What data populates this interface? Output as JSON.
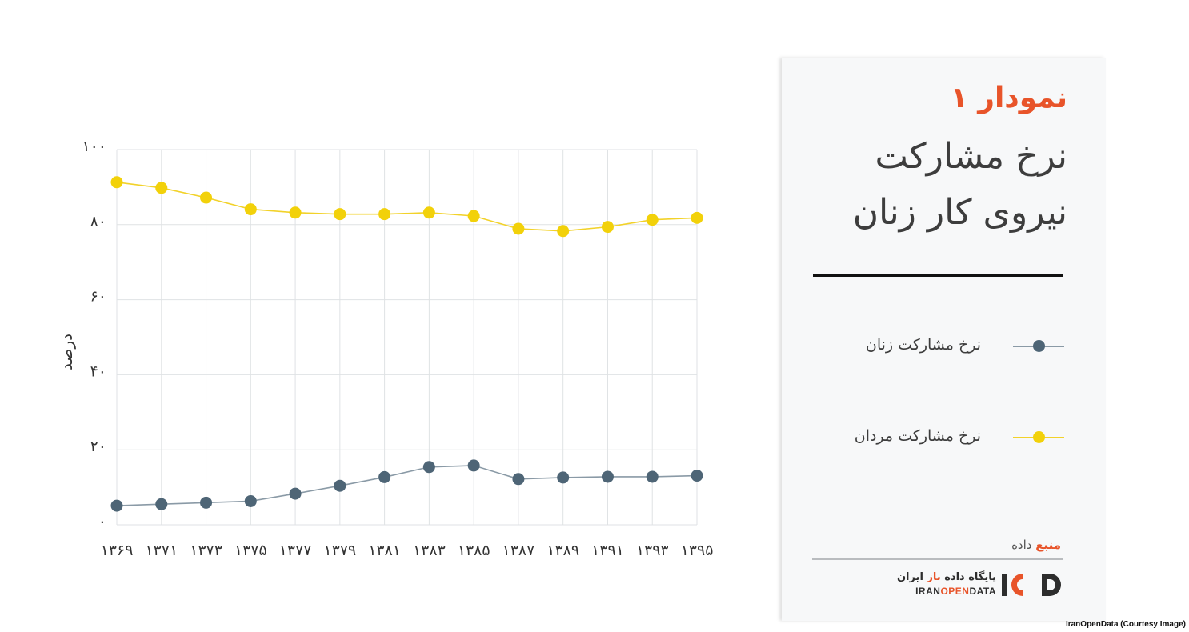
{
  "chart_data": {
    "type": "line",
    "ylabel": "درصد",
    "ylim": [
      0,
      100
    ],
    "yticks": [
      "۰",
      "۲۰",
      "۴۰",
      "۶۰",
      "۸۰",
      "۱۰۰"
    ],
    "ytick_values": [
      0,
      20,
      40,
      60,
      80,
      100
    ],
    "x": [
      1369,
      1371,
      1373,
      1375,
      1377,
      1379,
      1381,
      1383,
      1385,
      1387,
      1389,
      1391,
      1393,
      1395
    ],
    "x_tick_labels": [
      "۱۳۶۹",
      "۱۳۷۱",
      "۱۳۷۳",
      "۱۳۷۵",
      "۱۳۷۷",
      "۱۳۷۹",
      "۱۳۸۱",
      "۱۳۸۳",
      "۱۳۸۵",
      "۱۳۸۷",
      "۱۳۸۹",
      "۱۳۹۱",
      "۱۳۹۳",
      "۱۳۹۵"
    ],
    "series": [
      {
        "name": "نرخ مشارکت مردان",
        "color": "#f2d10a",
        "line_color": "#f2d22a",
        "values": [
          91.3,
          89.8,
          87.2,
          84.1,
          83.2,
          82.8,
          82.8,
          83.2,
          82.3,
          78.9,
          78.3,
          79.4,
          81.3,
          81.8
        ]
      },
      {
        "name": "نرخ مشارکت زنان",
        "color": "#4e6576",
        "line_color": "#8a9aa6",
        "values": [
          5.1,
          5.5,
          5.9,
          6.3,
          8.3,
          10.4,
          12.7,
          15.4,
          15.8,
          12.2,
          12.6,
          12.8,
          12.8,
          13.1
        ]
      }
    ],
    "grid": true
  },
  "panel": {
    "figure_label": "نمودار ۱",
    "title_line1": "نرخ مشارکت",
    "title_line2": "نیروی کار زنان",
    "legend": [
      {
        "label": "نرخ مشارکت زنان",
        "color": "#4e6576",
        "line_color": "#8a9aa6"
      },
      {
        "label": "نرخ مشارکت مردان",
        "color": "#f2d10a",
        "line_color": "#f2d22a"
      }
    ],
    "source_accent": "منبع",
    "source_rest": " داده",
    "logo": {
      "persian_pre": "پایگاه داده ",
      "persian_accent": "باز",
      "persian_post": " ایران",
      "english_a": "IRAN",
      "english_b": "OPEN",
      "english_c": "DATA",
      "icon": "iod-logo-icon"
    }
  },
  "credit": "IranOpenData (Courtesy Image)",
  "colors": {
    "accent": "#e8542a",
    "grid": "#dfe2e4"
  }
}
